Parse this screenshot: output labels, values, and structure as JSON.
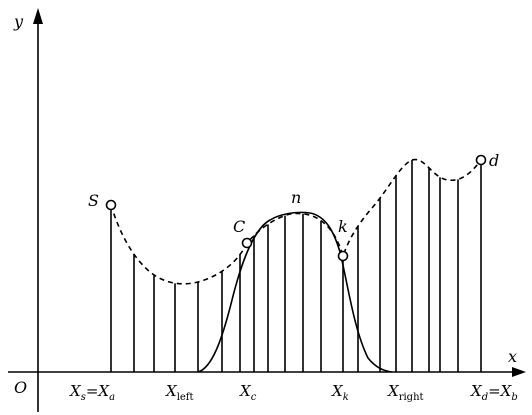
{
  "labels": {
    "y_axis": "y",
    "x_axis": "x",
    "origin": "O",
    "point_s": "S",
    "point_c": "C",
    "point_n": "n",
    "point_k": "k",
    "point_d": "d"
  },
  "x_markers": {
    "xs_eq_xa": {
      "base": "X",
      "sub1": "s",
      "eq": "=",
      "base2": "X",
      "sub2": "a"
    },
    "x_left": {
      "base": "X",
      "sub": "left"
    },
    "x_c": {
      "base": "X",
      "sub": "c"
    },
    "x_k": {
      "base": "X",
      "sub": "k"
    },
    "x_right": {
      "base": "X",
      "sub": "right"
    },
    "xd_eq_xb": {
      "base": "X",
      "sub1": "d",
      "eq": "=",
      "base2": "X",
      "sub2": "b"
    }
  },
  "colors": {
    "ink": "#000000",
    "background": "#ffffff"
  }
}
